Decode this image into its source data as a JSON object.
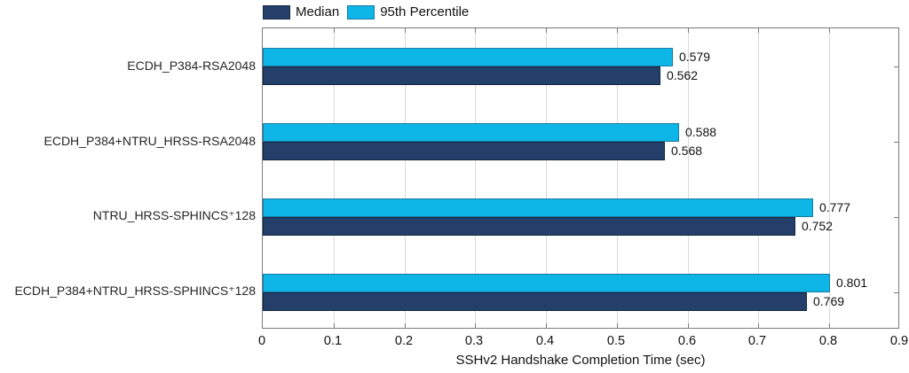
{
  "chart_data": {
    "type": "bar",
    "orientation": "horizontal",
    "title": "",
    "xlabel": "SSHv2 Handshake Completion Time (sec)",
    "ylabel": "",
    "xlim": [
      0,
      0.9
    ],
    "xticks": [
      0,
      0.1,
      0.2,
      0.3,
      0.4,
      0.5,
      0.6,
      0.7,
      0.8,
      0.9
    ],
    "xtick_labels": [
      "0",
      "0.1",
      "0.2",
      "0.3",
      "0.4",
      "0.5",
      "0.6",
      "0.7",
      "0.8",
      "0.9"
    ],
    "grid": "vertical",
    "legend_position": "top-left-outside",
    "value_labels_decimals": 3,
    "categories": [
      "ECDH_P384-RSA2048",
      "ECDH_P384+NTRU_HRSS-RSA2048",
      "NTRU_HRSS-SPHINCS⁺128",
      "ECDH_P384+NTRU_HRSS-SPHINCS⁺128"
    ],
    "series": [
      {
        "name": "Median",
        "color": "#24406a",
        "border_color": "#14273f",
        "values": [
          0.562,
          0.568,
          0.752,
          0.769
        ]
      },
      {
        "name": "95th Percentile",
        "color": "#0db6e7",
        "border_color": "#1a7aa4",
        "values": [
          0.579,
          0.588,
          0.777,
          0.801
        ]
      }
    ]
  },
  "style_colors": {
    "axis_border": "#7a7a7a",
    "gridline": "#d9d9d9",
    "text": "#111111"
  }
}
